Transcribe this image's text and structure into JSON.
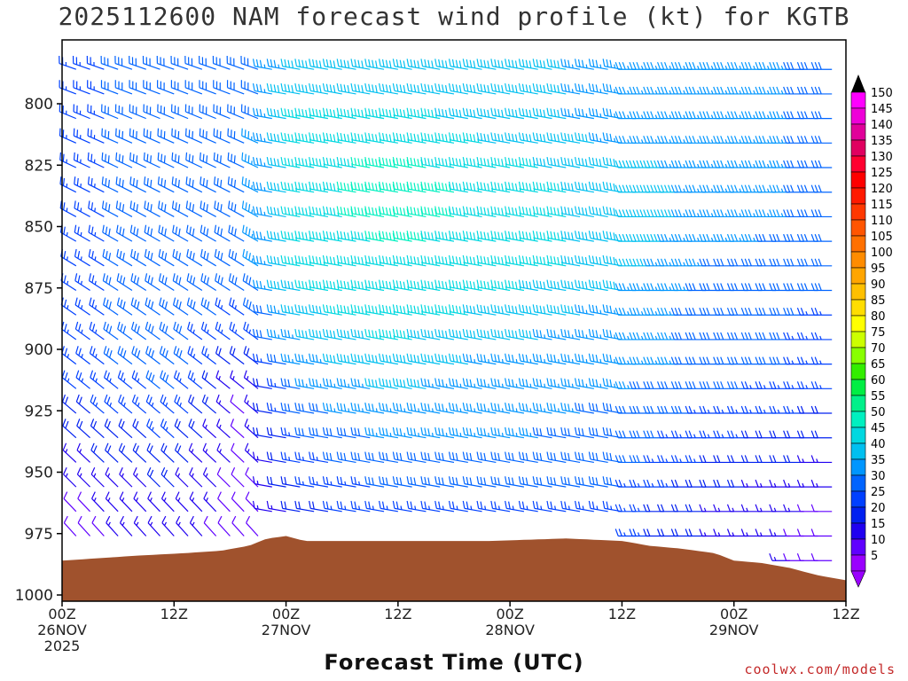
{
  "chart_data": {
    "type": "wind-barb-profile",
    "title": "2025112600 NAM forecast wind profile (kt) for KGTB",
    "xlabel": "Forecast Time (UTC)",
    "credit": "coolwx.com/models",
    "x_ticks": [
      {
        "hour": 0,
        "line1": "00Z",
        "line2": "26NOV",
        "line3": "2025"
      },
      {
        "hour": 12,
        "line1": "12Z",
        "line2": "",
        "line3": ""
      },
      {
        "hour": 24,
        "line1": "00Z",
        "line2": "27NOV",
        "line3": ""
      },
      {
        "hour": 36,
        "line1": "12Z",
        "line2": "",
        "line3": ""
      },
      {
        "hour": 48,
        "line1": "00Z",
        "line2": "28NOV",
        "line3": ""
      },
      {
        "hour": 60,
        "line1": "12Z",
        "line2": "",
        "line3": ""
      },
      {
        "hour": 72,
        "line1": "00Z",
        "line2": "29NOV",
        "line3": ""
      },
      {
        "hour": 84,
        "line1": "12Z",
        "line2": "",
        "line3": ""
      }
    ],
    "xlim_hours": [
      0,
      84
    ],
    "y_ticks": [
      "800",
      "825",
      "850",
      "875",
      "900",
      "925",
      "950",
      "975",
      "1000"
    ],
    "y_tick_values": [
      800,
      825,
      850,
      875,
      900,
      925,
      950,
      975,
      1000
    ],
    "ylim_hpa": [
      780,
      1000
    ],
    "colorbar": {
      "labels": [
        "150",
        "145",
        "140",
        "135",
        "130",
        "125",
        "120",
        "115",
        "110",
        "105",
        "100",
        "95",
        "90",
        "85",
        "80",
        "75",
        "70",
        "65",
        "60",
        "55",
        "50",
        "45",
        "40",
        "35",
        "30",
        "25",
        "20",
        "15",
        "10",
        "5"
      ],
      "colors": [
        "#ff00ff",
        "#ee00d8",
        "#e0009a",
        "#e00060",
        "#ff0030",
        "#ff0000",
        "#ff1a00",
        "#ff3800",
        "#ff5500",
        "#ff7000",
        "#ff8c00",
        "#ffa500",
        "#ffc000",
        "#ffdd00",
        "#ffff00",
        "#ccff00",
        "#88ff00",
        "#33ee00",
        "#00ee44",
        "#00f08a",
        "#00f0c0",
        "#00d8e0",
        "#00c0f0",
        "#0096ff",
        "#0064ff",
        "#0040ff",
        "#0020f0",
        "#2000f0",
        "#6000ff",
        "#9a00ff"
      ]
    },
    "terrain_color": "#a0522d",
    "terrain_surface_hpa": [
      [
        0,
        986
      ],
      [
        4,
        985
      ],
      [
        8,
        984
      ],
      [
        13,
        983
      ],
      [
        17,
        982
      ],
      [
        20,
        980
      ],
      [
        22,
        977
      ],
      [
        24,
        976
      ],
      [
        26,
        978
      ],
      [
        30,
        978
      ],
      [
        38,
        978
      ],
      [
        46,
        978
      ],
      [
        54,
        977
      ],
      [
        60,
        978
      ],
      [
        63,
        980
      ],
      [
        66,
        981
      ],
      [
        70,
        983
      ],
      [
        72,
        986
      ],
      [
        75,
        987
      ],
      [
        78,
        989
      ],
      [
        81,
        992
      ],
      [
        84,
        994
      ]
    ],
    "wind_field_speed_kt": {
      "description_rows_hpa": [
        790,
        810,
        830,
        850,
        870,
        890,
        910,
        930,
        950,
        970
      ],
      "speed_by_hour": [
        {
          "hour": 0,
          "speeds": [
            25,
            25,
            25,
            25,
            25,
            25,
            25,
            20,
            15,
            10
          ]
        },
        {
          "hour": 12,
          "speeds": [
            30,
            30,
            30,
            30,
            30,
            30,
            30,
            25,
            20,
            15
          ]
        },
        {
          "hour": 20,
          "speeds": [
            30,
            30,
            30,
            30,
            30,
            25,
            15,
            10,
            10,
            10
          ]
        },
        {
          "hour": 26,
          "speeds": [
            40,
            45,
            45,
            45,
            45,
            40,
            35,
            30,
            25,
            20
          ]
        },
        {
          "hour": 36,
          "speeds": [
            40,
            45,
            50,
            50,
            45,
            45,
            40,
            35,
            30,
            25
          ]
        },
        {
          "hour": 48,
          "speeds": [
            40,
            40,
            45,
            45,
            45,
            40,
            35,
            35,
            30,
            25
          ]
        },
        {
          "hour": 60,
          "speeds": [
            35,
            35,
            40,
            40,
            40,
            35,
            35,
            30,
            30,
            25
          ]
        },
        {
          "hour": 72,
          "speeds": [
            35,
            35,
            35,
            35,
            30,
            30,
            30,
            25,
            20,
            15
          ]
        },
        {
          "hour": 84,
          "speeds": [
            30,
            30,
            30,
            30,
            30,
            25,
            25,
            20,
            15,
            10
          ]
        }
      ]
    }
  }
}
